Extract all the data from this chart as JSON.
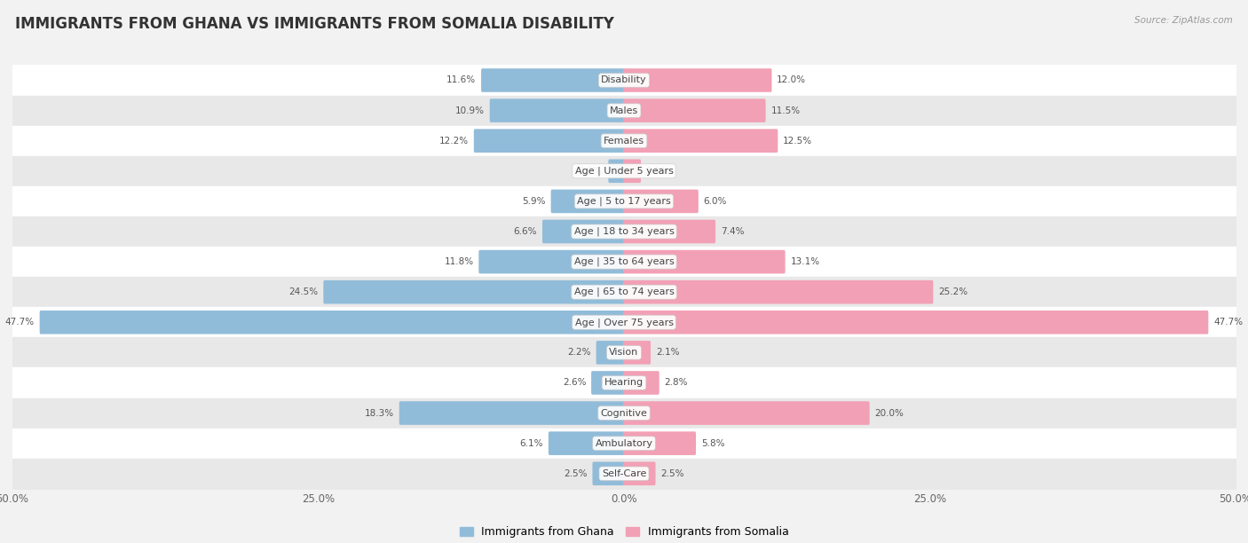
{
  "title": "IMMIGRANTS FROM GHANA VS IMMIGRANTS FROM SOMALIA DISABILITY",
  "source": "Source: ZipAtlas.com",
  "categories": [
    "Disability",
    "Males",
    "Females",
    "Age | Under 5 years",
    "Age | 5 to 17 years",
    "Age | 18 to 34 years",
    "Age | 35 to 64 years",
    "Age | 65 to 74 years",
    "Age | Over 75 years",
    "Vision",
    "Hearing",
    "Cognitive",
    "Ambulatory",
    "Self-Care"
  ],
  "ghana_values": [
    11.6,
    10.9,
    12.2,
    1.2,
    5.9,
    6.6,
    11.8,
    24.5,
    47.7,
    2.2,
    2.6,
    18.3,
    6.1,
    2.5
  ],
  "somalia_values": [
    12.0,
    11.5,
    12.5,
    1.3,
    6.0,
    7.4,
    13.1,
    25.2,
    47.7,
    2.1,
    2.8,
    20.0,
    5.8,
    2.5
  ],
  "ghana_color": "#91bcd9",
  "somalia_color": "#f2a0b5",
  "ghana_label": "Immigrants from Ghana",
  "somalia_label": "Immigrants from Somalia",
  "axis_max": 50.0,
  "background_color": "#f2f2f2",
  "row_bg_even": "#ffffff",
  "row_bg_odd": "#e8e8e8",
  "bar_height": 0.62,
  "title_fontsize": 12,
  "label_fontsize": 8.0,
  "value_fontsize": 7.5,
  "tick_fontsize": 8.5
}
